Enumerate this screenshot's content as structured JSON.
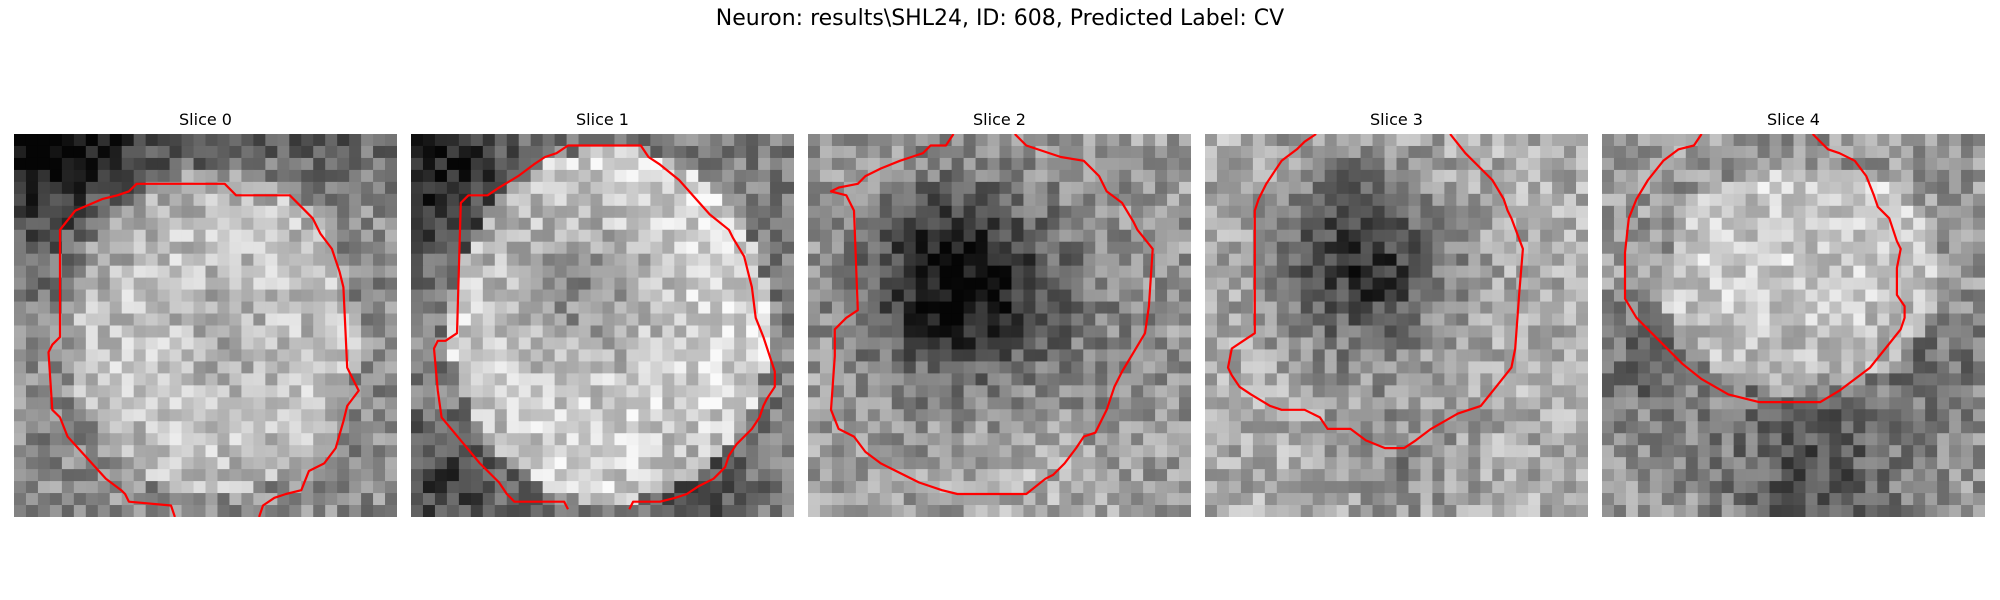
{
  "figure": {
    "title": "Neuron: results\\SHL24, ID: 608, Predicted Label: CV"
  },
  "panels": [
    {
      "title": "Slice 0",
      "image": "grayscale-microscopy-slice",
      "contour_color": "#ff0000"
    },
    {
      "title": "Slice 1",
      "image": "grayscale-microscopy-slice",
      "contour_color": "#ff0000"
    },
    {
      "title": "Slice 2",
      "image": "grayscale-microscopy-slice",
      "contour_color": "#ff0000"
    },
    {
      "title": "Slice 3",
      "image": "grayscale-microscopy-slice",
      "contour_color": "#ff0000"
    },
    {
      "title": "Slice 4",
      "image": "grayscale-microscopy-slice",
      "contour_color": "#ff0000"
    }
  ]
}
